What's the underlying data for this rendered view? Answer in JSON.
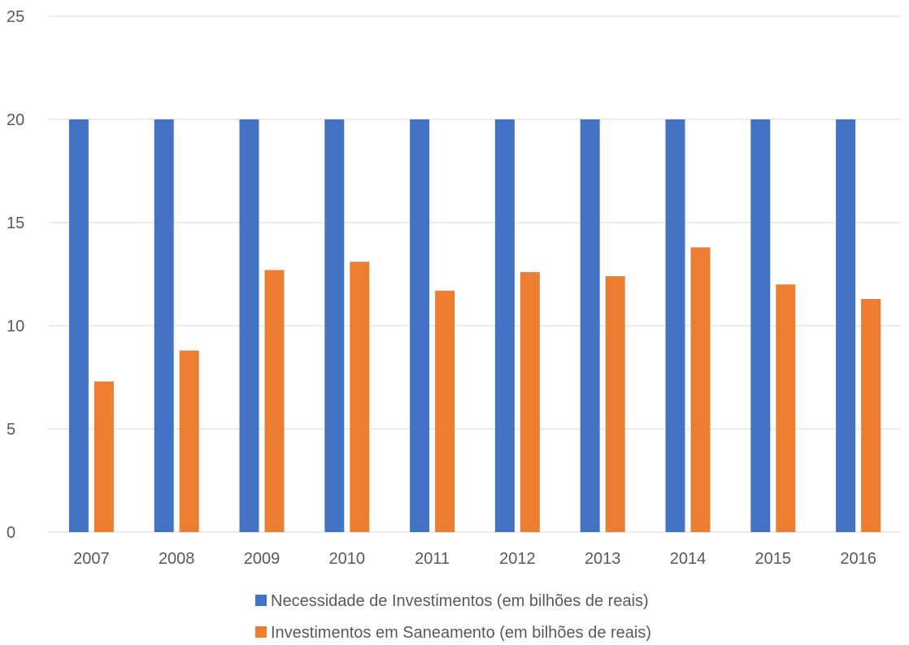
{
  "chart_data": {
    "type": "bar",
    "categories": [
      "2007",
      "2008",
      "2009",
      "2010",
      "2011",
      "2012",
      "2013",
      "2014",
      "2015",
      "2016"
    ],
    "series": [
      {
        "name": "Necessidade de Investimentos (em bilhões de reais)",
        "color": "#4472C4",
        "values": [
          20,
          20,
          20,
          20,
          20,
          20,
          20,
          20,
          20,
          20
        ]
      },
      {
        "name": "Investimentos em Saneamento (em bilhões de reais)",
        "color": "#ED7D31",
        "values": [
          7.3,
          8.8,
          12.7,
          13.1,
          11.7,
          12.6,
          12.4,
          13.8,
          12.0,
          11.3
        ]
      }
    ],
    "yticks": [
      "0",
      "5",
      "10",
      "15",
      "20",
      "25"
    ],
    "ylim": [
      0,
      25
    ],
    "grid": true,
    "legend_position": "bottom",
    "title": "",
    "xlabel": "",
    "ylabel": ""
  }
}
